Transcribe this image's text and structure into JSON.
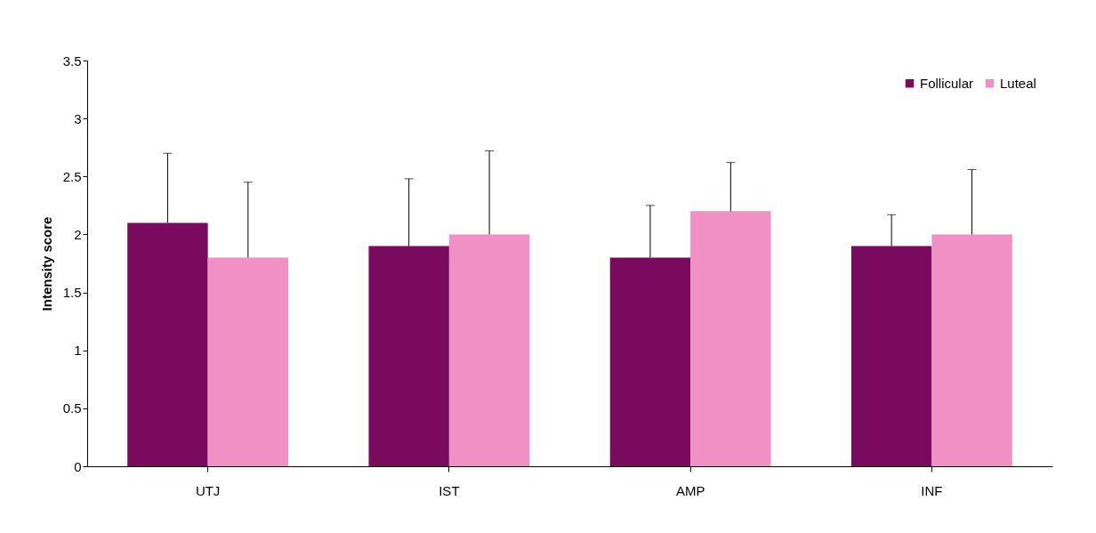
{
  "chart_data": {
    "type": "bar",
    "ylabel": "Intensity score",
    "categories": [
      "UTJ",
      "IST",
      "AMP",
      "INF"
    ],
    "series": [
      {
        "name": "Follicular",
        "color": "#7a0a5e",
        "values": [
          2.1,
          1.9,
          1.8,
          1.9
        ],
        "errors": [
          [
            2.1,
            2.7
          ],
          [
            1.9,
            2.48
          ],
          [
            1.8,
            2.25
          ],
          [
            1.9,
            2.17
          ]
        ]
      },
      {
        "name": "Luteal",
        "color": "#f090c4",
        "values": [
          1.8,
          2.0,
          2.2,
          2.0
        ],
        "errors": [
          [
            1.8,
            2.45
          ],
          [
            2.0,
            2.72
          ],
          [
            2.2,
            2.62
          ],
          [
            2.0,
            2.56
          ]
        ]
      }
    ],
    "ylim": [
      0,
      3.5
    ],
    "yticks": [
      0,
      0.5,
      1,
      1.5,
      2,
      2.5,
      3,
      3.5
    ],
    "grid": false,
    "legend": "top right"
  }
}
